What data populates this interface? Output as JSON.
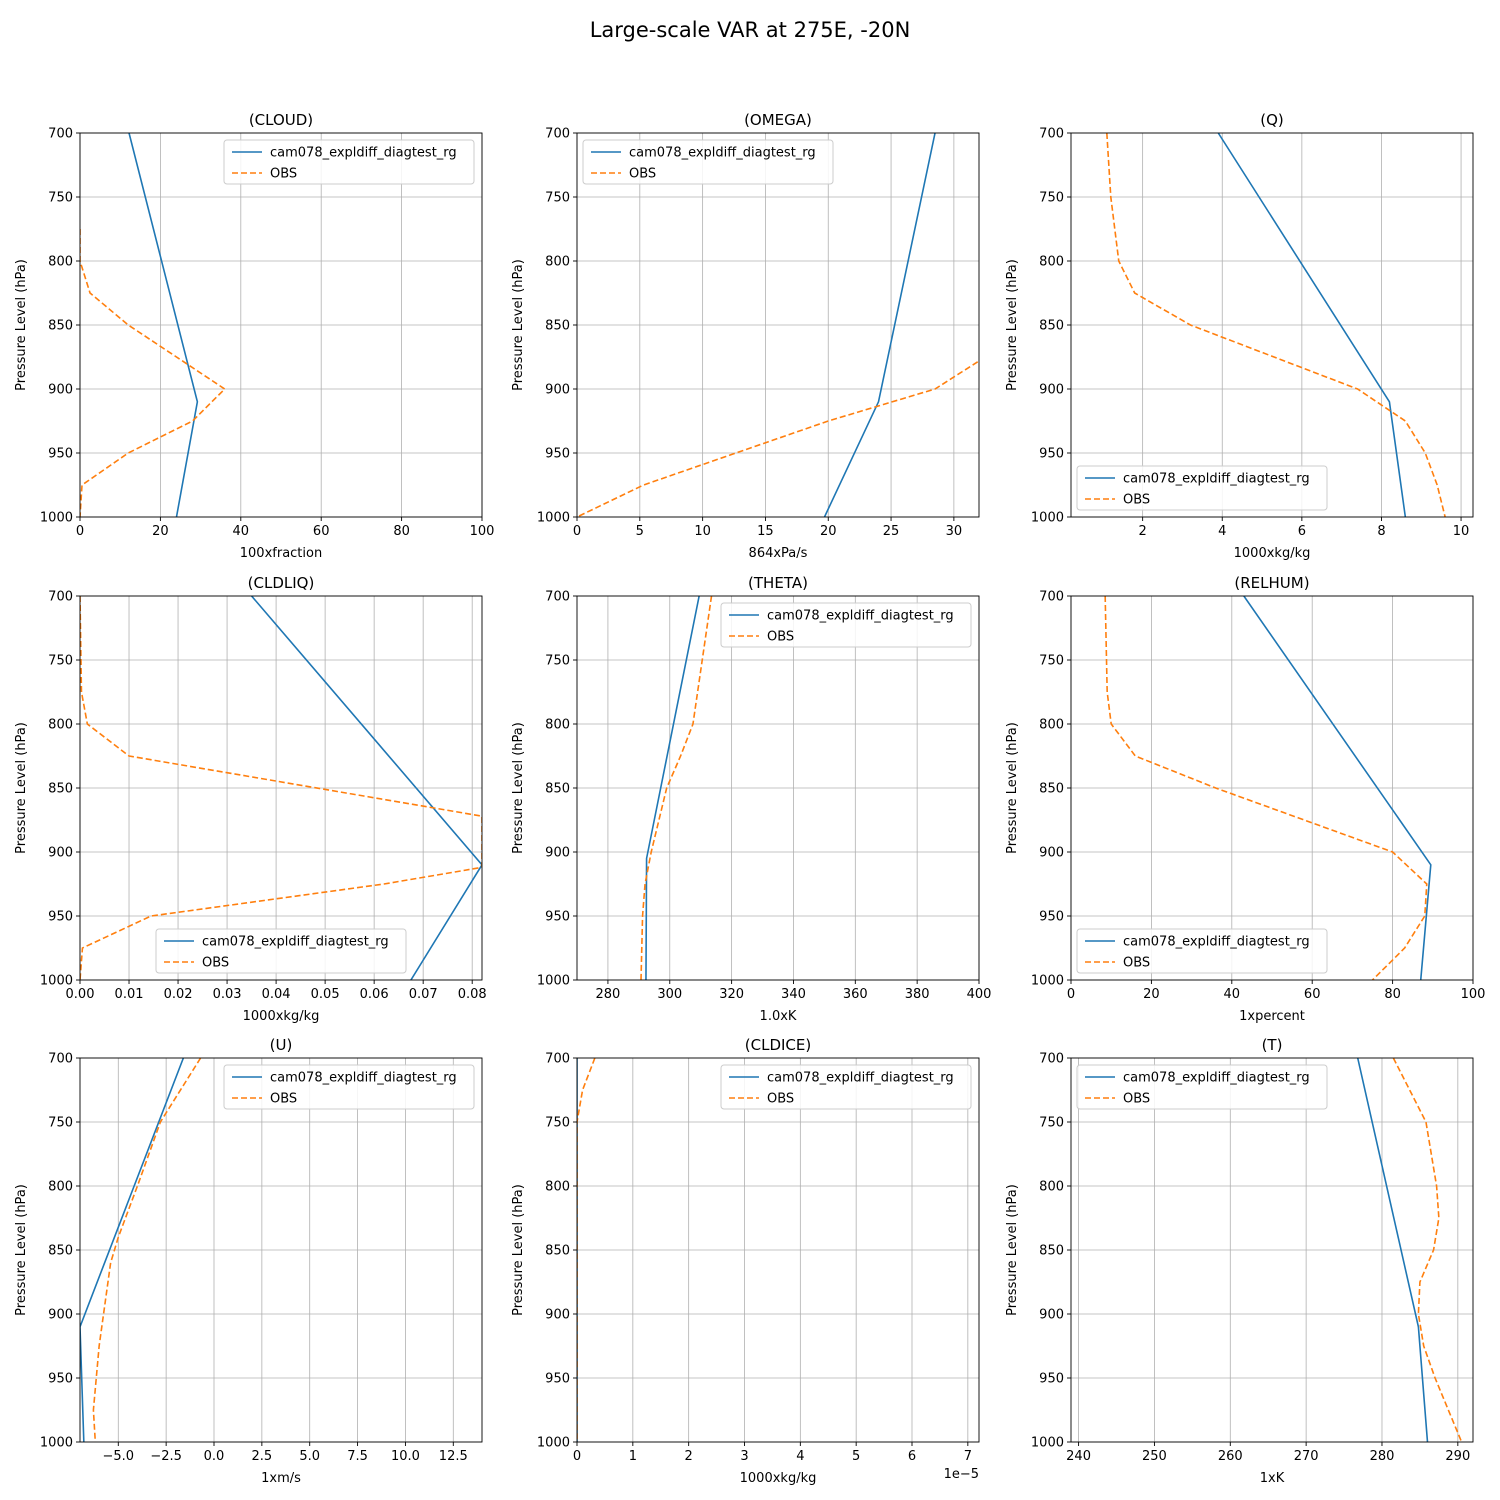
{
  "suptitle": "Large-scale VAR at 275E, -20N",
  "colors": {
    "model": "#1f77b4",
    "obs": "#ff7f0e",
    "grid": "#b0b0b0"
  },
  "chart_data": [
    {
      "type": "line",
      "title": "(CLOUD)",
      "xlabel": "100xfraction",
      "ylabel": "Pressure Level (hPa)",
      "xlim": [
        0,
        100
      ],
      "ylim": [
        1000,
        700
      ],
      "xticks": [
        0,
        20,
        40,
        60,
        80,
        100
      ],
      "xtick_labels": [
        "0",
        "20",
        "40",
        "60",
        "80",
        "100"
      ],
      "yticks": [
        700,
        750,
        800,
        850,
        900,
        950,
        1000
      ],
      "ytick_labels": [
        "700",
        "750",
        "800",
        "850",
        "900",
        "950",
        "1000"
      ],
      "legend": "upper right",
      "grid": true,
      "series": [
        {
          "name": "cam078_expldiff_diagtest_rg",
          "style": "solid",
          "x": [
            12.2,
            29.2,
            24.0
          ],
          "y": [
            700,
            910,
            1000
          ]
        },
        {
          "name": "OBS",
          "style": "dashed",
          "x": [
            0,
            0,
            2.5,
            12,
            36,
            28,
            12,
            0.5,
            0
          ],
          "y": [
            775,
            800,
            825,
            850,
            900,
            925,
            950,
            975,
            1000
          ]
        }
      ]
    },
    {
      "type": "line",
      "title": "(OMEGA)",
      "xlabel": "864xPa/s",
      "ylabel": "Pressure Level (hPa)",
      "xlim": [
        0,
        32
      ],
      "ylim": [
        1000,
        700
      ],
      "xticks": [
        0,
        5,
        10,
        15,
        20,
        25,
        30
      ],
      "xtick_labels": [
        "0",
        "5",
        "10",
        "15",
        "20",
        "25",
        "30"
      ],
      "yticks": [
        700,
        750,
        800,
        850,
        900,
        950,
        1000
      ],
      "ytick_labels": [
        "700",
        "750",
        "800",
        "850",
        "900",
        "950",
        "1000"
      ],
      "legend": "upper left",
      "grid": true,
      "series": [
        {
          "name": "cam078_expldiff_diagtest_rg",
          "style": "solid",
          "x": [
            28.5,
            24.0,
            19.7
          ],
          "y": [
            700,
            910,
            1000
          ]
        },
        {
          "name": "OBS",
          "style": "dashed",
          "x": [
            32.5,
            28.5,
            20.0,
            5.3,
            0
          ],
          "y": [
            875,
            900,
            925,
            975,
            1000
          ]
        }
      ]
    },
    {
      "type": "line",
      "title": "(Q)",
      "xlabel": "1000xkg/kg",
      "ylabel": "Pressure Level (hPa)",
      "xlim": [
        0.2,
        10.3
      ],
      "ylim": [
        1000,
        700
      ],
      "xticks": [
        2,
        4,
        6,
        8,
        10
      ],
      "xtick_labels": [
        "2",
        "4",
        "6",
        "8",
        "10"
      ],
      "yticks": [
        700,
        750,
        800,
        850,
        900,
        950,
        1000
      ],
      "ytick_labels": [
        "700",
        "750",
        "800",
        "850",
        "900",
        "950",
        "1000"
      ],
      "legend": "lower left",
      "grid": true,
      "series": [
        {
          "name": "cam078_expldiff_diagtest_rg",
          "style": "solid",
          "x": [
            3.9,
            8.2,
            8.6
          ],
          "y": [
            700,
            910,
            1000
          ]
        },
        {
          "name": "OBS",
          "style": "dashed",
          "x": [
            1.1,
            1.2,
            1.4,
            1.8,
            3.2,
            7.4,
            8.6,
            9.1,
            9.4,
            9.6
          ],
          "y": [
            700,
            750,
            800,
            825,
            850,
            900,
            925,
            950,
            975,
            1000
          ]
        }
      ]
    },
    {
      "type": "line",
      "title": "(CLDLIQ)",
      "xlabel": "1000xkg/kg",
      "ylabel": "Pressure Level (hPa)",
      "xlim": [
        0,
        0.082
      ],
      "ylim": [
        1000,
        700
      ],
      "xticks": [
        0,
        0.01,
        0.02,
        0.03,
        0.04,
        0.05,
        0.06,
        0.07,
        0.08
      ],
      "xtick_labels": [
        "0.00",
        "0.01",
        "0.02",
        "0.03",
        "0.04",
        "0.05",
        "0.06",
        "0.07",
        "0.08"
      ],
      "yticks": [
        700,
        750,
        800,
        850,
        900,
        950,
        1000
      ],
      "ytick_labels": [
        "700",
        "750",
        "800",
        "850",
        "900",
        "950",
        "1000"
      ],
      "legend": "lower center",
      "grid": true,
      "series": [
        {
          "name": "cam078_expldiff_diagtest_rg",
          "style": "solid",
          "x": [
            0.035,
            0.082,
            0.0675
          ],
          "y": [
            700,
            910,
            1000
          ]
        },
        {
          "name": "OBS",
          "style": "dashed",
          "x": [
            0,
            0.0003,
            0.0015,
            0.01,
            0.082,
            0.082,
            0.062,
            0.0145,
            0.0005,
            0
          ],
          "y": [
            700,
            775,
            800,
            825,
            872,
            912,
            925,
            950,
            975,
            1000
          ]
        }
      ]
    },
    {
      "type": "line",
      "title": "(THETA)",
      "xlabel": "1.0xK",
      "ylabel": "Pressure Level (hPa)",
      "xlim": [
        270,
        400
      ],
      "ylim": [
        1000,
        700
      ],
      "xticks": [
        280,
        300,
        320,
        340,
        360,
        380,
        400
      ],
      "xtick_labels": [
        "280",
        "300",
        "320",
        "340",
        "360",
        "380",
        "400"
      ],
      "yticks": [
        700,
        750,
        800,
        850,
        900,
        950,
        1000
      ],
      "ytick_labels": [
        "700",
        "750",
        "800",
        "850",
        "900",
        "950",
        "1000"
      ],
      "legend": "upper right",
      "grid": true,
      "series": [
        {
          "name": "cam078_expldiff_diagtest_rg",
          "style": "solid",
          "x": [
            309.5,
            292.5,
            292.3
          ],
          "y": [
            700,
            905,
            1000
          ]
        },
        {
          "name": "OBS",
          "style": "dashed",
          "x": [
            313.5,
            310.5,
            307.5,
            303.5,
            299.0,
            294.0,
            292.0,
            291.2,
            290.7
          ],
          "y": [
            700,
            750,
            800,
            825,
            850,
            900,
            925,
            950,
            1000
          ]
        }
      ]
    },
    {
      "type": "line",
      "title": "(RELHUM)",
      "xlabel": "1xpercent",
      "ylabel": "Pressure Level (hPa)",
      "xlim": [
        0,
        100
      ],
      "ylim": [
        1000,
        700
      ],
      "xticks": [
        0,
        20,
        40,
        60,
        80,
        100
      ],
      "xtick_labels": [
        "0",
        "20",
        "40",
        "60",
        "80",
        "100"
      ],
      "yticks": [
        700,
        750,
        800,
        850,
        900,
        950,
        1000
      ],
      "ytick_labels": [
        "700",
        "750",
        "800",
        "850",
        "900",
        "950",
        "1000"
      ],
      "legend": "lower left",
      "grid": true,
      "series": [
        {
          "name": "cam078_expldiff_diagtest_rg",
          "style": "solid",
          "x": [
            43,
            89.5,
            87
          ],
          "y": [
            700,
            910,
            1000
          ]
        },
        {
          "name": "OBS",
          "style": "dashed",
          "x": [
            8.5,
            9,
            10,
            16,
            36,
            80,
            88.5,
            88,
            83,
            75
          ],
          "y": [
            700,
            775,
            800,
            825,
            850,
            900,
            925,
            950,
            975,
            1000
          ]
        }
      ]
    },
    {
      "type": "line",
      "title": "(U)",
      "xlabel": "1xm/s",
      "ylabel": "Pressure Level (hPa)",
      "xlim": [
        -7,
        14
      ],
      "ylim": [
        1000,
        700
      ],
      "xticks": [
        -5,
        -2.5,
        0,
        2.5,
        5,
        7.5,
        10,
        12.5
      ],
      "xtick_labels": [
        "−5.0",
        "−2.5",
        "0.0",
        "2.5",
        "5.0",
        "7.5",
        "10.0",
        "12.5"
      ],
      "yticks": [
        700,
        750,
        800,
        850,
        900,
        950,
        1000
      ],
      "ytick_labels": [
        "700",
        "750",
        "800",
        "850",
        "900",
        "950",
        "1000"
      ],
      "legend": "upper right",
      "grid": true,
      "series": [
        {
          "name": "cam078_expldiff_diagtest_rg",
          "style": "solid",
          "x": [
            -1.6,
            -7.0,
            -6.8
          ],
          "y": [
            700,
            910,
            1000
          ]
        },
        {
          "name": "OBS",
          "style": "dashed",
          "x": [
            -0.7,
            -2.8,
            -4.0,
            -5.0,
            -5.4,
            -6.0,
            -6.3,
            -6.2
          ],
          "y": [
            700,
            750,
            800,
            840,
            860,
            925,
            975,
            1000
          ]
        }
      ]
    },
    {
      "type": "line",
      "title": "(CLDICE)",
      "xlabel": "1000xkg/kg",
      "ylabel": "Pressure Level (hPa)",
      "xlim": [
        0,
        7.2e-05
      ],
      "ylim": [
        1000,
        700
      ],
      "xticks": [
        0,
        1e-05,
        2e-05,
        3e-05,
        4e-05,
        5e-05,
        6e-05,
        7e-05
      ],
      "xtick_labels": [
        "0",
        "1",
        "2",
        "3",
        "4",
        "5",
        "6",
        "7"
      ],
      "offset_text": "1e−5",
      "yticks": [
        700,
        750,
        800,
        850,
        900,
        950,
        1000
      ],
      "ytick_labels": [
        "700",
        "750",
        "800",
        "850",
        "900",
        "950",
        "1000"
      ],
      "legend": "upper right",
      "grid": true,
      "series": [
        {
          "name": "cam078_expldiff_diagtest_rg",
          "style": "solid",
          "x": [
            0,
            0
          ],
          "y": [
            700,
            1000
          ]
        },
        {
          "name": "OBS",
          "style": "dashed",
          "x": [
            3.2e-06,
            1e-06,
            0,
            0
          ],
          "y": [
            700,
            725,
            750,
            1000
          ]
        }
      ]
    },
    {
      "type": "line",
      "title": "(T)",
      "xlabel": "1xK",
      "ylabel": "Pressure Level (hPa)",
      "xlim": [
        239,
        292
      ],
      "ylim": [
        1000,
        700
      ],
      "xticks": [
        240,
        250,
        260,
        270,
        280,
        290
      ],
      "xtick_labels": [
        "240",
        "250",
        "260",
        "270",
        "280",
        "290"
      ],
      "yticks": [
        700,
        750,
        800,
        850,
        900,
        950,
        1000
      ],
      "ytick_labels": [
        "700",
        "750",
        "800",
        "850",
        "900",
        "950",
        "1000"
      ],
      "legend": "upper left",
      "grid": true,
      "series": [
        {
          "name": "cam078_expldiff_diagtest_rg",
          "style": "solid",
          "x": [
            276.8,
            284.8,
            286.0
          ],
          "y": [
            700,
            910,
            1000
          ]
        },
        {
          "name": "OBS",
          "style": "dashed",
          "x": [
            281.5,
            285.8,
            287.2,
            287.5,
            286.8,
            285.0,
            284.8,
            285.5,
            287.0,
            290.5
          ],
          "y": [
            700,
            750,
            800,
            825,
            850,
            875,
            900,
            925,
            950,
            1000
          ]
        }
      ]
    }
  ]
}
